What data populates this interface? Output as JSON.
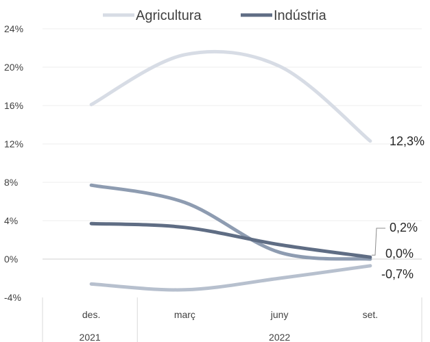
{
  "chart_data": {
    "type": "line",
    "categories": [
      "des.",
      "març",
      "juny",
      "set."
    ],
    "category_groups": [
      {
        "label": "2021",
        "span": [
          0,
          0
        ]
      },
      {
        "label": "2022",
        "span": [
          1,
          3
        ]
      }
    ],
    "y_ticks": [
      "24%",
      "20%",
      "16%",
      "12%",
      "8%",
      "4%",
      "0%",
      "-4%"
    ],
    "ylim": [
      -4,
      24
    ],
    "y_step": 4,
    "grid": true,
    "legend": "top",
    "smooth": true,
    "series": [
      {
        "name": "Agricultura",
        "color": "#d7dce5",
        "values": [
          16.1,
          21.3,
          20.1,
          12.3
        ],
        "end_label": "12,3%",
        "in_legend": true
      },
      {
        "name": "Indústria",
        "color": "#5f6d84",
        "values": [
          3.7,
          3.3,
          1.5,
          0.2
        ],
        "end_label": "0,2%",
        "in_legend": true
      },
      {
        "name": "",
        "color": "#8e9cb1",
        "values": [
          7.7,
          5.9,
          0.7,
          0.0
        ],
        "end_label": "0,0%",
        "in_legend": false
      },
      {
        "name": "",
        "color": "#b7c0ce",
        "values": [
          -2.6,
          -3.2,
          -2.0,
          -0.7
        ],
        "end_label": "-0,7%",
        "in_legend": false
      }
    ]
  }
}
